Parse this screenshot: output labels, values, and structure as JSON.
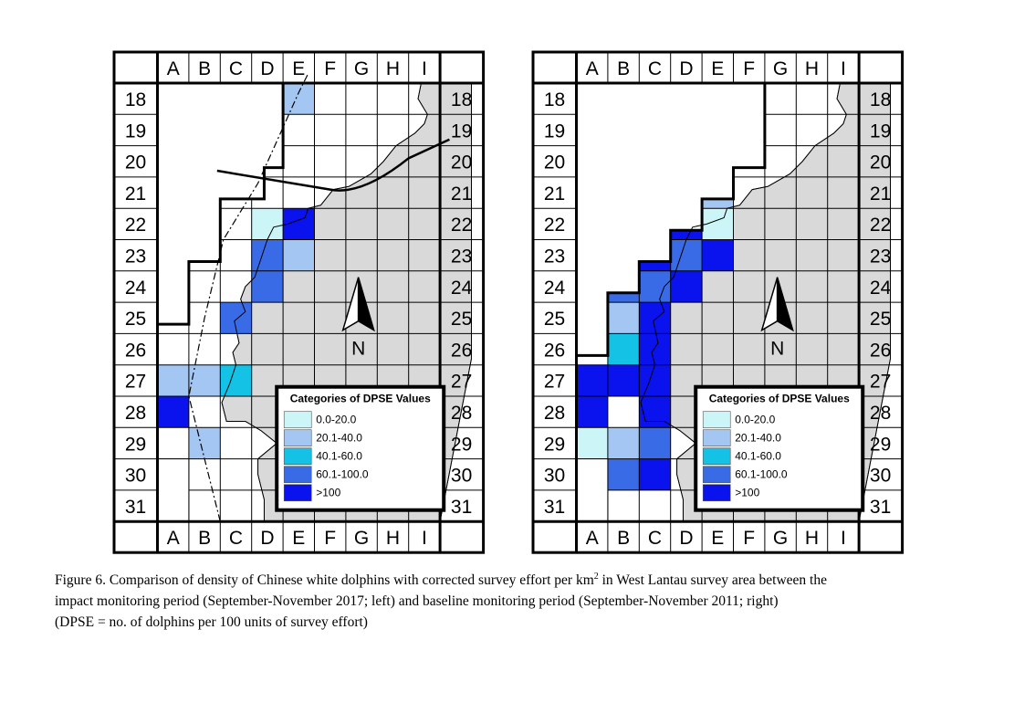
{
  "columns": [
    "A",
    "B",
    "C",
    "D",
    "E",
    "F",
    "G",
    "H",
    "I"
  ],
  "rows": [
    "18",
    "19",
    "20",
    "21",
    "22",
    "23",
    "24",
    "25",
    "26",
    "27",
    "28",
    "29",
    "30",
    "31"
  ],
  "north_label": "N",
  "legend": {
    "title": "Categories of DPSE Values",
    "items": [
      {
        "label": "0.0-20.0",
        "color": "#ccf5f8"
      },
      {
        "label": "20.1-40.0",
        "color": "#a3c6f2"
      },
      {
        "label": "40.1-60.0",
        "color": "#13c2e5"
      },
      {
        "label": "60.1-100.0",
        "color": "#3a6be6"
      },
      {
        "label": ">100",
        "color": "#0a12ee"
      }
    ]
  },
  "land_color": "#d9d9d9",
  "maps": [
    {
      "period": "impact monitoring period (September-November 2017; left)",
      "cells": [
        {
          "col": "E",
          "row": "18",
          "cat": 1
        },
        {
          "col": "D",
          "row": "22",
          "cat": 0
        },
        {
          "col": "E",
          "row": "22",
          "cat": 4
        },
        {
          "col": "D",
          "row": "23",
          "cat": 3
        },
        {
          "col": "E",
          "row": "23",
          "cat": 1
        },
        {
          "col": "D",
          "row": "24",
          "cat": 3
        },
        {
          "col": "C",
          "row": "25",
          "cat": 3
        },
        {
          "col": "A",
          "row": "27",
          "cat": 1
        },
        {
          "col": "B",
          "row": "27",
          "cat": 1
        },
        {
          "col": "C",
          "row": "27",
          "cat": 2
        },
        {
          "col": "A",
          "row": "28",
          "cat": 4
        },
        {
          "col": "B",
          "row": "29",
          "cat": 1
        }
      ]
    },
    {
      "period": "baseline monitoring period (September-November 2011; right)",
      "cells": [
        {
          "col": "E",
          "row": "21",
          "cat": 1
        },
        {
          "col": "C",
          "row": "22",
          "cat": 4
        },
        {
          "col": "D",
          "row": "22",
          "cat": 4
        },
        {
          "col": "E",
          "row": "22",
          "cat": 0
        },
        {
          "col": "C",
          "row": "23",
          "cat": 4
        },
        {
          "col": "D",
          "row": "23",
          "cat": 3
        },
        {
          "col": "E",
          "row": "23",
          "cat": 4
        },
        {
          "col": "B",
          "row": "24",
          "cat": 3
        },
        {
          "col": "C",
          "row": "24",
          "cat": 3
        },
        {
          "col": "D",
          "row": "24",
          "cat": 4
        },
        {
          "col": "B",
          "row": "25",
          "cat": 1
        },
        {
          "col": "C",
          "row": "25",
          "cat": 4
        },
        {
          "col": "B",
          "row": "26",
          "cat": 2
        },
        {
          "col": "C",
          "row": "26",
          "cat": 4
        },
        {
          "col": "A",
          "row": "27",
          "cat": 4
        },
        {
          "col": "B",
          "row": "27",
          "cat": 4
        },
        {
          "col": "C",
          "row": "27",
          "cat": 4
        },
        {
          "col": "A",
          "row": "28",
          "cat": 4
        },
        {
          "col": "C",
          "row": "28",
          "cat": 4
        },
        {
          "col": "A",
          "row": "29",
          "cat": 0
        },
        {
          "col": "B",
          "row": "29",
          "cat": 1
        },
        {
          "col": "C",
          "row": "29",
          "cat": 3
        },
        {
          "col": "B",
          "row": "30",
          "cat": 3
        },
        {
          "col": "C",
          "row": "30",
          "cat": 4
        }
      ]
    }
  ],
  "caption": {
    "line1_before_sup": "Figure 6.  Comparison of density of Chinese white dolphins with corrected survey effort per km",
    "line1_sup": "2",
    "line1_after_sup": " in West Lantau survey area between the",
    "line2": "impact monitoring period (September-November 2017; left) and baseline monitoring period (September-November 2011; right)",
    "line3": "(DPSE = no. of dolphins per 100 units of survey effort)"
  }
}
